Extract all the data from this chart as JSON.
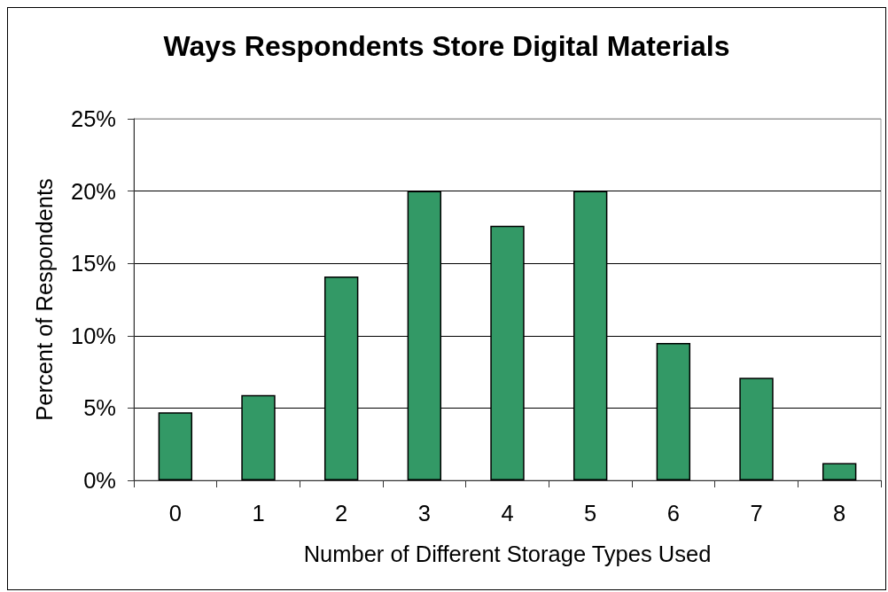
{
  "chart_data": {
    "type": "bar",
    "title": "Ways Respondents Store Digital Materials",
    "xlabel": "Number of Different Storage Types Used",
    "ylabel": "Percent of Respondents",
    "categories": [
      "0",
      "1",
      "2",
      "3",
      "4",
      "5",
      "6",
      "7",
      "8"
    ],
    "values": [
      4.7,
      5.9,
      14.1,
      20,
      17.6,
      20,
      9.5,
      7.1,
      1.2
    ],
    "color": "#339966",
    "ylim": [
      0,
      25
    ],
    "yticks": [
      {
        "value": 0,
        "label": "0%"
      },
      {
        "value": 5,
        "label": "5%"
      },
      {
        "value": 10,
        "label": "10%"
      },
      {
        "value": 15,
        "label": "15%"
      },
      {
        "value": 20,
        "label": "20%"
      },
      {
        "value": 25,
        "label": "25%"
      }
    ],
    "grid": "y"
  }
}
